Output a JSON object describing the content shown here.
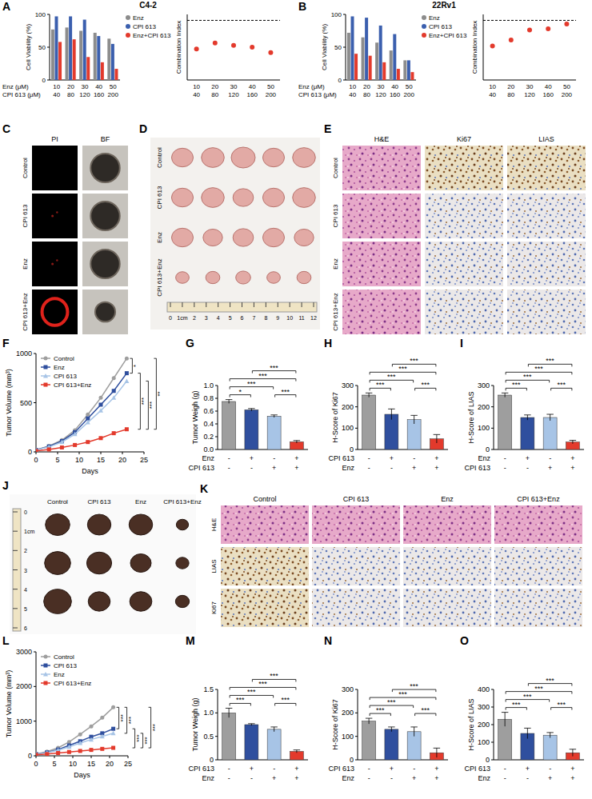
{
  "chart_data": [
    {
      "panel": "A",
      "title": "C4-2",
      "type": "bar",
      "y_label": "Cell Viability (%)",
      "ylim": [
        0,
        100
      ],
      "yticks": [
        0,
        50,
        100
      ],
      "legend": "right",
      "category_rows": [
        {
          "label": "Enz (μM)",
          "values": [
            10,
            20,
            30,
            40,
            50
          ]
        },
        {
          "label": "CPI 613 (μM)",
          "values": [
            40,
            80,
            120,
            160,
            200
          ]
        }
      ],
      "series": [
        {
          "name": "Enz",
          "color": "#8c8c8c",
          "values": [
            77,
            80,
            75,
            72,
            63
          ]
        },
        {
          "name": "CPI 613",
          "color": "#3b5fae",
          "values": [
            97,
            97,
            92,
            67,
            55
          ]
        },
        {
          "name": "Enz+CPI 613",
          "color": "#e33a2c",
          "values": [
            58,
            62,
            35,
            27,
            17
          ]
        }
      ]
    },
    {
      "type": "scatter",
      "y_label": "Combination Index",
      "ylim": [
        0,
        1.1
      ],
      "tick_labels": "x",
      "reference_line": 1,
      "color": "#e33a2c",
      "category_rows": [
        {
          "values": [
            10,
            20,
            30,
            40,
            50
          ]
        },
        {
          "values": [
            40,
            80,
            120,
            160,
            200
          ]
        }
      ],
      "values": [
        0.52,
        0.62,
        0.58,
        0.55,
        0.46
      ]
    },
    {
      "panel": "B",
      "title": "22Rv1",
      "type": "bar",
      "y_label": "Cell Viability (%)",
      "ylim": [
        0,
        100
      ],
      "yticks": [
        0,
        50,
        100
      ],
      "legend": "right",
      "category_rows": [
        {
          "label": "Enz (μM)",
          "values": [
            10,
            20,
            30,
            40,
            50
          ]
        },
        {
          "label": "CPI 613 (μM)",
          "values": [
            40,
            80,
            120,
            160,
            200
          ]
        }
      ],
      "series": [
        {
          "name": "Enz",
          "color": "#8c8c8c",
          "values": [
            72,
            65,
            57,
            45,
            30
          ]
        },
        {
          "name": "CPI 613",
          "color": "#3b5fae",
          "values": [
            97,
            95,
            83,
            70,
            30
          ]
        },
        {
          "name": "Enz+CPI 613",
          "color": "#e33a2c",
          "values": [
            40,
            37,
            27,
            17,
            12
          ]
        }
      ]
    },
    {
      "type": "scatter",
      "y_label": "Combination Index",
      "ylim": [
        0,
        1.1
      ],
      "tick_labels": "x",
      "reference_line": 1,
      "color": "#e33a2c",
      "category_rows": [
        {
          "values": [
            10,
            20,
            30,
            40,
            50
          ]
        },
        {
          "values": [
            40,
            80,
            120,
            160,
            200
          ]
        }
      ],
      "values": [
        0.57,
        0.67,
        0.84,
        0.86,
        0.94
      ]
    },
    {
      "panel": "F",
      "type": "line",
      "x_label": "Days",
      "y_label": "Tumor Volume (mm³)",
      "x": [
        0,
        3,
        6,
        9,
        12,
        15,
        18,
        21
      ],
      "xlim": [
        0,
        25
      ],
      "xticks": [
        0,
        5,
        10,
        15,
        20,
        25
      ],
      "ylim": [
        0,
        1000
      ],
      "yticks": [
        0,
        500,
        1000
      ],
      "legend": "upper left",
      "series": [
        {
          "name": "Control",
          "color": "#9e9e9e",
          "marker": "circle",
          "values": [
            20,
            60,
            120,
            220,
            380,
            550,
            750,
            950
          ]
        },
        {
          "name": "Enz",
          "color": "#2f4f9e",
          "marker": "square",
          "values": [
            20,
            55,
            110,
            200,
            340,
            480,
            620,
            800
          ]
        },
        {
          "name": "CPI 613",
          "color": "#a7c4e6",
          "marker": "triangle",
          "values": [
            20,
            50,
            100,
            180,
            300,
            420,
            550,
            720
          ]
        },
        {
          "name": "CPI 613+Enz",
          "color": "#e33a2c",
          "marker": "square",
          "values": [
            10,
            25,
            45,
            70,
            100,
            140,
            190,
            230
          ]
        }
      ],
      "comparisons": [
        {
          "pair": [
            0,
            1
          ],
          "text": "*"
        },
        {
          "pair": [
            1,
            3
          ],
          "text": "***"
        },
        {
          "pair": [
            2,
            3
          ],
          "text": "***"
        },
        {
          "pair": [
            0,
            3
          ],
          "text": "**"
        }
      ]
    },
    {
      "panel": "G",
      "type": "bar",
      "y_label": "Tumor Weigh (g)",
      "ylim": [
        0,
        1
      ],
      "yticks": [
        {
          "value": 0,
          "label": "0.0"
        },
        0.2,
        0.4,
        0.6,
        0.8,
        {
          "value": 1,
          "label": "1.0"
        }
      ],
      "values": [
        0.75,
        0.62,
        0.52,
        0.12
      ],
      "errors": [
        0.03,
        0.02,
        0.02,
        0.02
      ],
      "colors": [
        "#9e9e9e",
        "#2f4f9e",
        "#a7c4e6",
        "#e33a2c"
      ],
      "row_labels": [
        {
          "label": "Enz",
          "signs": [
            "-",
            "+",
            "-",
            "+"
          ]
        },
        {
          "label": "CPI 613",
          "signs": [
            "-",
            "-",
            "+",
            "+"
          ]
        }
      ],
      "comparisons": [
        {
          "pair": [
            0,
            1
          ],
          "text": "*"
        },
        {
          "pair": [
            0,
            2
          ],
          "text": "***"
        },
        {
          "pair": [
            0,
            3
          ],
          "text": "***"
        },
        {
          "pair": [
            1,
            3
          ],
          "text": "***"
        },
        {
          "pair": [
            2,
            3
          ],
          "text": "***"
        }
      ]
    },
    {
      "panel": "H",
      "type": "bar",
      "y_label": "H-Score of Ki67",
      "ylim": [
        0,
        300
      ],
      "yticks": [
        0,
        100,
        200,
        300
      ],
      "values": [
        255,
        165,
        140,
        50
      ],
      "errors": [
        10,
        25,
        20,
        20
      ],
      "colors": [
        "#9e9e9e",
        "#2f4f9e",
        "#a7c4e6",
        "#e33a2c"
      ],
      "row_labels": [
        {
          "label": "CPI 613",
          "signs": [
            "-",
            "+",
            "-",
            "+"
          ]
        },
        {
          "label": "Enz",
          "signs": [
            "-",
            "-",
            "+",
            "+"
          ]
        }
      ],
      "comparisons": [
        {
          "pair": [
            0,
            1
          ],
          "text": "***"
        },
        {
          "pair": [
            0,
            2
          ],
          "text": "***"
        },
        {
          "pair": [
            0,
            3
          ],
          "text": "***"
        },
        {
          "pair": [
            1,
            3
          ],
          "text": "***"
        },
        {
          "pair": [
            2,
            3
          ],
          "text": "***"
        }
      ]
    },
    {
      "panel": "I",
      "type": "bar",
      "y_label": "H-Score of LIAS",
      "ylim": [
        0,
        300
      ],
      "yticks": [
        0,
        100,
        200,
        300
      ],
      "values": [
        255,
        150,
        150,
        35
      ],
      "errors": [
        10,
        12,
        15,
        8
      ],
      "colors": [
        "#9e9e9e",
        "#2f4f9e",
        "#a7c4e6",
        "#e33a2c"
      ],
      "row_labels": [
        {
          "label": "Enz",
          "signs": [
            "-",
            "+",
            "-",
            "+"
          ]
        },
        {
          "label": "CPI 613",
          "signs": [
            "-",
            "-",
            "+",
            "+"
          ]
        }
      ],
      "comparisons": [
        {
          "pair": [
            0,
            1
          ],
          "text": "***"
        },
        {
          "pair": [
            0,
            2
          ],
          "text": "***"
        },
        {
          "pair": [
            0,
            3
          ],
          "text": "***"
        },
        {
          "pair": [
            1,
            3
          ],
          "text": "***"
        },
        {
          "pair": [
            2,
            3
          ],
          "text": "***"
        }
      ]
    },
    {
      "panel": "L",
      "type": "line",
      "x_label": "Days",
      "y_label": "Tumor Volume (mm³)",
      "x": [
        0,
        3,
        6,
        9,
        12,
        15,
        18,
        21
      ],
      "xlim": [
        0,
        25
      ],
      "xticks": [
        0,
        5,
        10,
        15,
        20,
        25
      ],
      "ylim": [
        0,
        3000
      ],
      "yticks": [
        0,
        1000,
        2000,
        3000
      ],
      "legend": "upper left",
      "series": [
        {
          "name": "Control",
          "color": "#9e9e9e",
          "marker": "circle",
          "values": [
            50,
            120,
            230,
            400,
            620,
            850,
            1100,
            1400
          ]
        },
        {
          "name": "CPI 613",
          "color": "#2f4f9e",
          "marker": "square",
          "values": [
            50,
            100,
            180,
            300,
            420,
            550,
            650,
            780
          ]
        },
        {
          "name": "Enz",
          "color": "#a7c4e6",
          "marker": "triangle",
          "values": [
            50,
            90,
            160,
            260,
            370,
            470,
            560,
            650
          ]
        },
        {
          "name": "CPI 613+Enz",
          "color": "#e33a2c",
          "marker": "square",
          "values": [
            30,
            50,
            80,
            110,
            140,
            170,
            200,
            230
          ]
        }
      ],
      "comparisons": [
        {
          "pair": [
            0,
            1
          ],
          "text": "***"
        },
        {
          "pair": [
            0,
            2
          ],
          "text": "***"
        },
        {
          "pair": [
            1,
            3
          ],
          "text": "***"
        },
        {
          "pair": [
            2,
            3
          ],
          "text": "***"
        },
        {
          "pair": [
            0,
            3
          ],
          "text": "***"
        }
      ]
    },
    {
      "panel": "M",
      "type": "bar",
      "y_label": "Tumor Weigh (g)",
      "ylim": [
        0,
        1.5
      ],
      "yticks": [
        0,
        0.5,
        {
          "value": 1,
          "label": "1.0"
        },
        1.5
      ],
      "values": [
        1.0,
        0.75,
        0.65,
        0.18
      ],
      "errors": [
        0.1,
        0.02,
        0.05,
        0.03
      ],
      "colors": [
        "#9e9e9e",
        "#2f4f9e",
        "#a7c4e6",
        "#e33a2c"
      ],
      "row_labels": [
        {
          "label": "CPI 613",
          "signs": [
            "-",
            "+",
            "-",
            "+"
          ]
        },
        {
          "label": "Enz",
          "signs": [
            "-",
            "-",
            "+",
            "+"
          ]
        }
      ],
      "comparisons": [
        {
          "pair": [
            0,
            1
          ],
          "text": "***"
        },
        {
          "pair": [
            0,
            2
          ],
          "text": "***"
        },
        {
          "pair": [
            0,
            3
          ],
          "text": "***"
        },
        {
          "pair": [
            1,
            3
          ],
          "text": "***"
        },
        {
          "pair": [
            2,
            3
          ],
          "text": "***"
        }
      ]
    },
    {
      "panel": "N",
      "type": "bar",
      "y_label": "H-Score of Ki67",
      "ylim": [
        0,
        300
      ],
      "yticks": [
        0,
        100,
        200,
        300
      ],
      "values": [
        165,
        130,
        120,
        30
      ],
      "errors": [
        12,
        10,
        20,
        20
      ],
      "colors": [
        "#9e9e9e",
        "#2f4f9e",
        "#a7c4e6",
        "#e33a2c"
      ],
      "row_labels": [
        {
          "label": "CPI 613",
          "signs": [
            "-",
            "+",
            "-",
            "+"
          ]
        },
        {
          "label": "Enz",
          "signs": [
            "-",
            "-",
            "+",
            "+"
          ]
        }
      ],
      "comparisons": [
        {
          "pair": [
            0,
            1
          ],
          "text": "***"
        },
        {
          "pair": [
            0,
            2
          ],
          "text": "***"
        },
        {
          "pair": [
            0,
            3
          ],
          "text": "***"
        },
        {
          "pair": [
            1,
            3
          ],
          "text": "***"
        },
        {
          "pair": [
            2,
            3
          ],
          "text": "***"
        }
      ]
    },
    {
      "panel": "O",
      "type": "bar",
      "y_label": "H-Score of LIAS",
      "ylim": [
        0,
        400
      ],
      "yticks": [
        0,
        100,
        200,
        300,
        400
      ],
      "values": [
        230,
        150,
        140,
        40
      ],
      "errors": [
        40,
        30,
        15,
        20
      ],
      "colors": [
        "#9e9e9e",
        "#2f4f9e",
        "#a7c4e6",
        "#e33a2c"
      ],
      "row_labels": [
        {
          "label": "CPI 613",
          "signs": [
            "-",
            "+",
            "-",
            "+"
          ]
        },
        {
          "label": "Enz",
          "signs": [
            "-",
            "-",
            "+",
            "+"
          ]
        }
      ],
      "comparisons": [
        {
          "pair": [
            0,
            1
          ],
          "text": "***"
        },
        {
          "pair": [
            0,
            2
          ],
          "text": "***"
        },
        {
          "pair": [
            0,
            3
          ],
          "text": "***"
        },
        {
          "pair": [
            1,
            3
          ],
          "text": "***"
        },
        {
          "pair": [
            2,
            3
          ],
          "text": "***"
        }
      ]
    }
  ],
  "image_panels": [
    {
      "panel": "C",
      "type": "image_grid",
      "col_labels": [
        "PI",
        "BF"
      ],
      "row_labels": [
        "Control",
        "CPI 613",
        "Enz",
        "CPI 613+Enz"
      ]
    },
    {
      "panel": "D",
      "type": "photo",
      "row_labels": [
        "Control",
        "CPI 613",
        "Enz",
        "CPI 613+Enz"
      ],
      "ruler_labels": [
        "0",
        "1cm",
        "2",
        "3",
        "4",
        "5",
        "6",
        "7",
        "8",
        "9",
        "10",
        "11",
        "12"
      ]
    },
    {
      "panel": "E",
      "type": "image_grid",
      "col_labels": [
        "H&E",
        "Ki67",
        "LIAS"
      ],
      "row_labels": [
        "Control",
        "CPI 613",
        "Enz",
        "CPI 613+Enz"
      ]
    },
    {
      "panel": "J",
      "type": "photo",
      "col_labels": [
        "Control",
        "CPI 613",
        "Enz",
        "CPI 613+Enz"
      ],
      "ruler_labels": [
        "0",
        "1cm",
        "2",
        "3",
        "4",
        "5",
        "6"
      ]
    },
    {
      "panel": "K",
      "type": "image_grid",
      "col_labels": [
        "Control",
        "CPI 613",
        "Enz",
        "CPI 613+Enz"
      ],
      "row_labels": [
        "H&E",
        "LIAS",
        "Ki67"
      ]
    }
  ]
}
